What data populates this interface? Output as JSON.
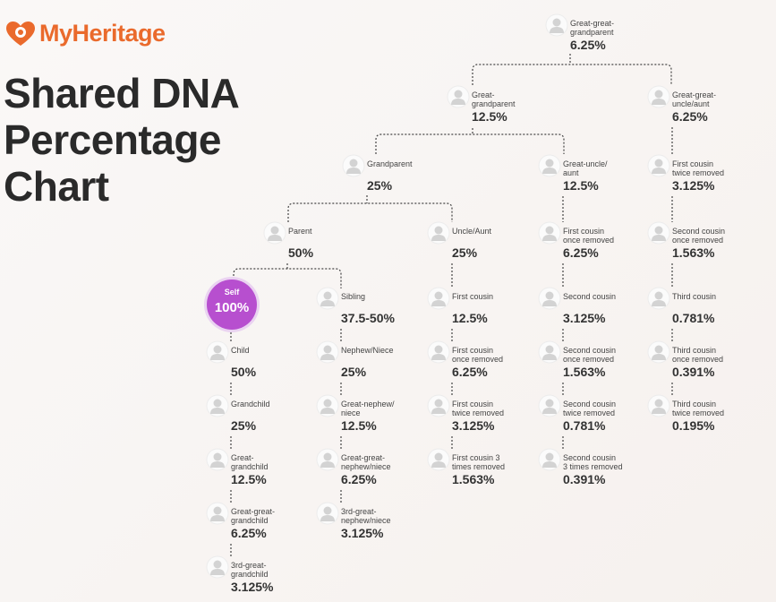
{
  "header": {
    "logo": "MyHeritage",
    "title": "Shared DNA Percentage Chart"
  },
  "nodes": [
    {
      "label": "Great-great-\ngrandparent",
      "value": "6.25%"
    },
    {
      "label": "Great-\ngrandparent",
      "value": "12.5%"
    },
    {
      "label": "Great-great-\nuncle/aunt",
      "value": "6.25%"
    },
    {
      "label": "Grandparent",
      "value": "25%"
    },
    {
      "label": "Great-uncle/\naunt",
      "value": "12.5%"
    },
    {
      "label": "First cousin\ntwice removed",
      "value": "3.125%"
    },
    {
      "label": "Parent",
      "value": "50%"
    },
    {
      "label": "Uncle/Aunt",
      "value": "25%"
    },
    {
      "label": "First cousin\nonce removed",
      "value": "6.25%"
    },
    {
      "label": "Second cousin\nonce removed",
      "value": "1.563%"
    },
    {
      "label": "Self",
      "value": "100%"
    },
    {
      "label": "Sibling",
      "value": "37.5-50%"
    },
    {
      "label": "First cousin",
      "value": "12.5%"
    },
    {
      "label": "Second cousin",
      "value": "3.125%"
    },
    {
      "label": "Third cousin",
      "value": "0.781%"
    },
    {
      "label": "Child",
      "value": "50%"
    },
    {
      "label": "Nephew/Niece",
      "value": "25%"
    },
    {
      "label": "First cousin\nonce removed",
      "value": "6.25%"
    },
    {
      "label": "Second cousin\nonce removed",
      "value": "1.563%"
    },
    {
      "label": "Third cousin\nonce removed",
      "value": "0.391%"
    },
    {
      "label": "Grandchild",
      "value": "25%"
    },
    {
      "label": "Great-nephew/\nniece",
      "value": "12.5%"
    },
    {
      "label": "First cousin\ntwice removed",
      "value": "3.125%"
    },
    {
      "label": "Second cousin\ntwice removed",
      "value": "0.781%"
    },
    {
      "label": "Third cousin\ntwice removed",
      "value": "0.195%"
    },
    {
      "label": "Great-\ngrandchild",
      "value": "12.5%"
    },
    {
      "label": "Great-great-\nnephew/niece",
      "value": "6.25%"
    },
    {
      "label": "First cousin 3\ntimes removed",
      "value": "1.563%"
    },
    {
      "label": "Second cousin\n3 times removed",
      "value": "0.391%"
    },
    {
      "label": "Great-great-\ngrandchild",
      "value": "6.25%"
    },
    {
      "label": "3rd-great-\nnephew/niece",
      "value": "3.125%"
    },
    {
      "label": "3rd-great-\ngrandchild",
      "value": "3.125%"
    }
  ]
}
